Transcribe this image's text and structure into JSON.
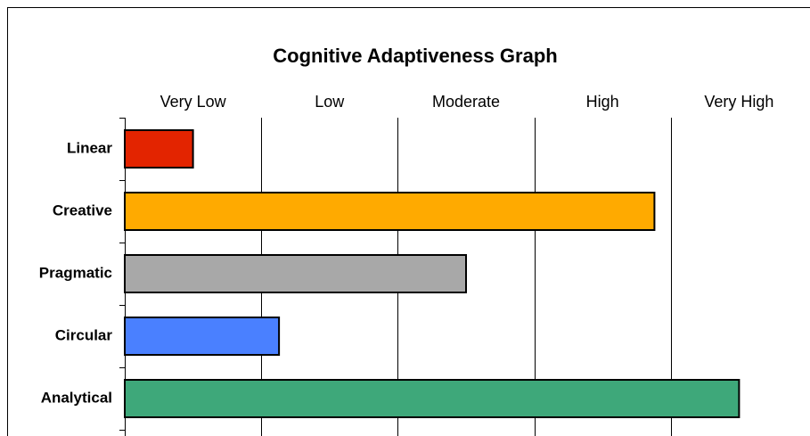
{
  "chart_data": {
    "type": "bar",
    "orientation": "horizontal",
    "title": "Cognitive Adaptiveness Graph",
    "categories": [
      "Linear",
      "Creative",
      "Pragmatic",
      "Circular",
      "Analytical"
    ],
    "series": [
      {
        "values": [
          0.5,
          3.88,
          2.5,
          1.13,
          4.5
        ],
        "colors": [
          "#e32400",
          "#ffaa00",
          "#a8a8a8",
          "#4a80ff",
          "#3ea87a"
        ]
      }
    ],
    "xlim": [
      0,
      5
    ],
    "xticks": [
      {
        "value": 0.5,
        "label": "Very Low"
      },
      {
        "value": 1.5,
        "label": "Low"
      },
      {
        "value": 2.5,
        "label": "Moderate"
      },
      {
        "value": 3.5,
        "label": "High"
      },
      {
        "value": 4.5,
        "label": "Very High"
      }
    ],
    "xgrid": [
      1,
      2,
      3,
      4
    ],
    "grid": true
  }
}
